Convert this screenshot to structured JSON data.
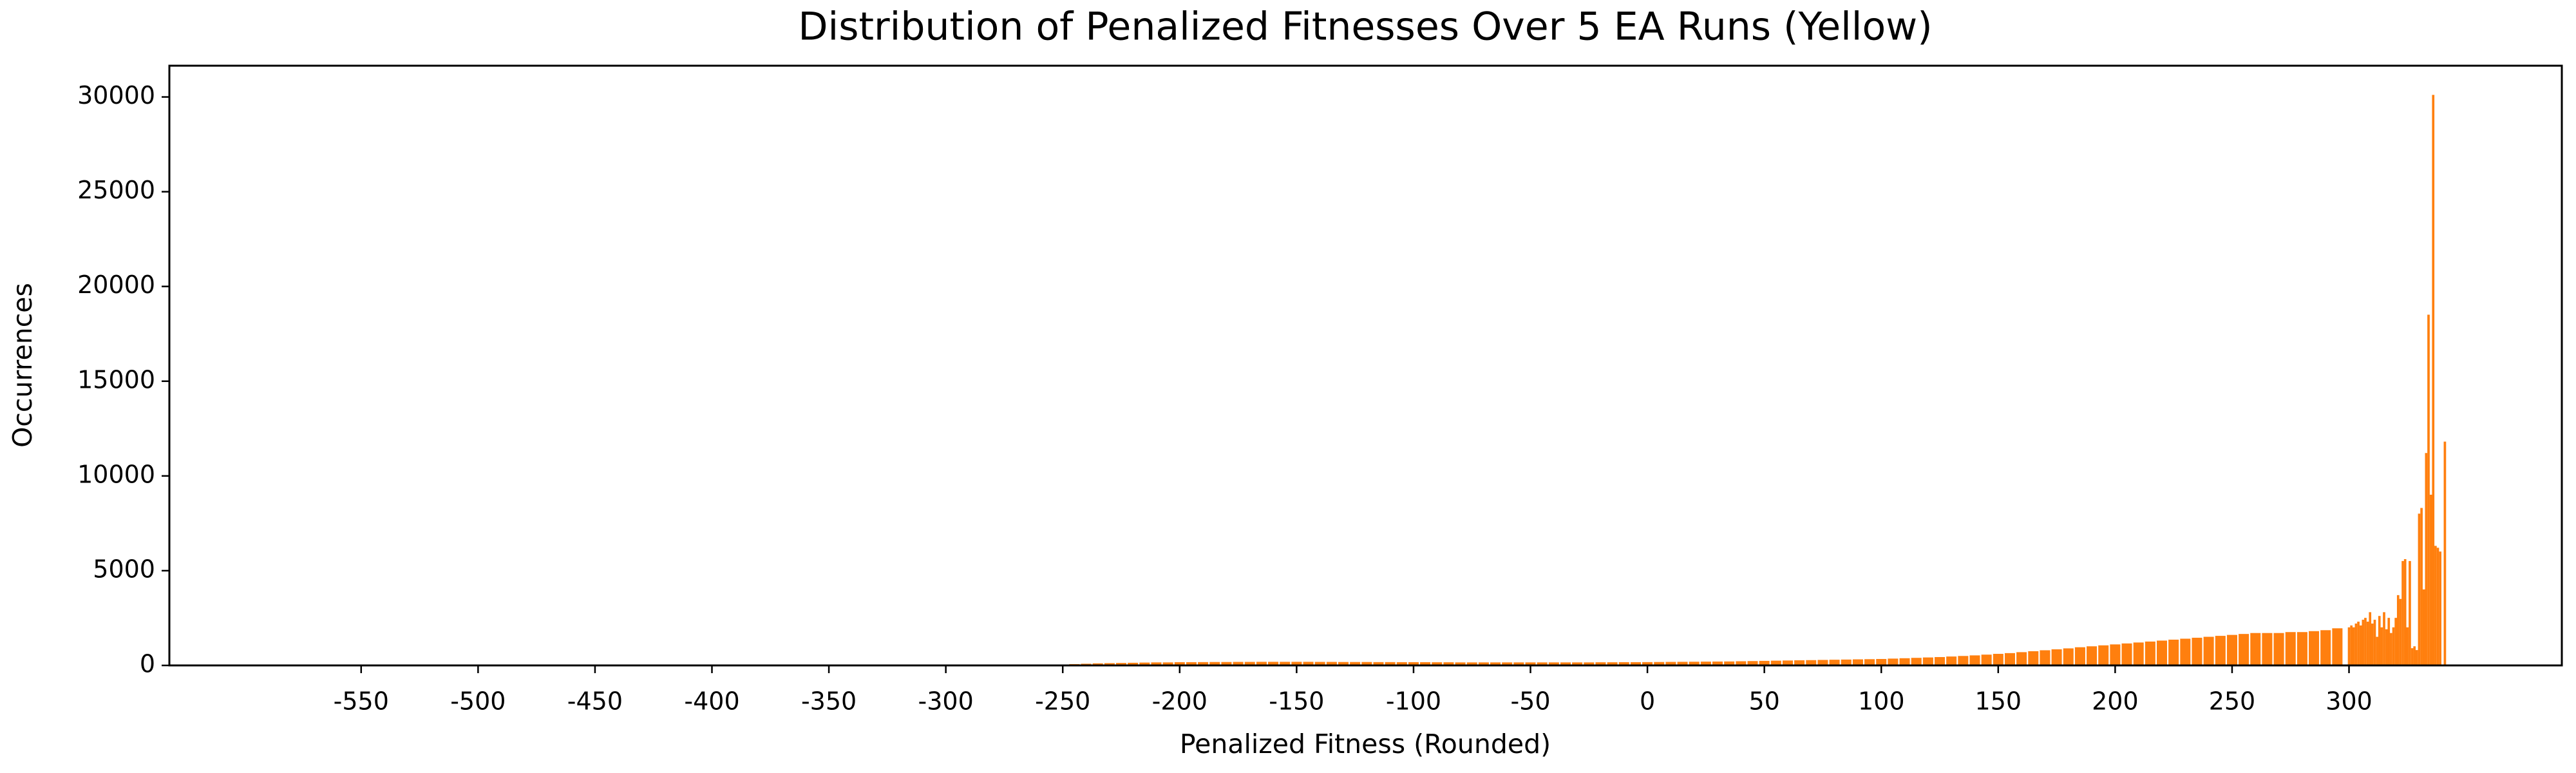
{
  "chart_data": {
    "type": "bar",
    "title": "Distribution of Penalized Fitnesses Over 5 EA Runs (Yellow)",
    "xlabel": "Penalized Fitness (Rounded)",
    "ylabel": "Occurrences",
    "color": "#ff7f0e",
    "x": [
      -250,
      -245,
      -240,
      -235,
      -230,
      -225,
      -220,
      -215,
      -210,
      -205,
      -200,
      -195,
      -190,
      -185,
      -180,
      -175,
      -170,
      -165,
      -160,
      -155,
      -150,
      -145,
      -140,
      -135,
      -130,
      -125,
      -120,
      -115,
      -110,
      -105,
      -100,
      -95,
      -90,
      -85,
      -80,
      -75,
      -70,
      -65,
      -60,
      -55,
      -50,
      -45,
      -40,
      -35,
      -30,
      -25,
      -20,
      -15,
      -10,
      -5,
      0,
      5,
      10,
      15,
      20,
      25,
      30,
      35,
      40,
      45,
      50,
      55,
      60,
      65,
      70,
      75,
      80,
      85,
      90,
      95,
      100,
      105,
      110,
      115,
      120,
      125,
      130,
      135,
      140,
      145,
      150,
      155,
      160,
      165,
      170,
      175,
      180,
      185,
      190,
      195,
      200,
      205,
      210,
      215,
      220,
      225,
      230,
      235,
      240,
      245,
      250,
      255,
      260,
      265,
      270,
      275,
      280,
      285,
      290,
      295,
      300,
      301,
      302,
      303,
      304,
      305,
      306,
      307,
      308,
      309,
      310,
      311,
      312,
      313,
      314,
      315,
      316,
      317,
      318,
      319,
      320,
      321,
      322,
      323,
      324,
      325,
      326,
      327,
      328,
      329,
      330,
      331,
      332,
      333,
      334,
      335,
      336,
      337,
      338,
      339,
      340,
      341
    ],
    "values": [
      40,
      60,
      80,
      100,
      110,
      120,
      130,
      140,
      150,
      150,
      160,
      160,
      165,
      170,
      170,
      175,
      175,
      180,
      180,
      180,
      180,
      180,
      175,
      175,
      170,
      170,
      170,
      165,
      165,
      160,
      160,
      160,
      155,
      155,
      150,
      150,
      150,
      150,
      150,
      150,
      150,
      150,
      150,
      150,
      150,
      150,
      155,
      155,
      160,
      160,
      165,
      170,
      175,
      180,
      185,
      190,
      195,
      200,
      210,
      220,
      230,
      240,
      250,
      260,
      270,
      280,
      290,
      300,
      310,
      320,
      330,
      350,
      370,
      390,
      410,
      430,
      460,
      490,
      520,
      560,
      600,
      640,
      690,
      740,
      790,
      840,
      890,
      950,
      1000,
      1050,
      1100,
      1150,
      1200,
      1250,
      1300,
      1350,
      1400,
      1450,
      1500,
      1550,
      1600,
      1650,
      1700,
      1700,
      1700,
      1750,
      1750,
      1800,
      1850,
      1950,
      2000,
      2100,
      2000,
      2200,
      2300,
      2100,
      2400,
      2500,
      2300,
      2800,
      2200,
      2400,
      1500,
      2600,
      2000,
      2800,
      1900,
      2500,
      1700,
      2000,
      2500,
      3700,
      3500,
      5500,
      5600,
      2000,
      5500,
      900,
      1000,
      800,
      8000,
      8300,
      4000,
      11200,
      18500,
      9000,
      30100,
      6300,
      6200,
      6000,
      0,
      11800
    ],
    "xlim": [
      -632,
      391
    ],
    "ylim": [
      0,
      31650
    ],
    "xticks": [
      -550,
      -500,
      -450,
      -400,
      -350,
      -300,
      -250,
      -200,
      -150,
      -100,
      -50,
      0,
      50,
      100,
      150,
      200,
      250,
      300
    ],
    "yticks": [
      0,
      5000,
      10000,
      15000,
      20000,
      25000,
      30000
    ]
  }
}
